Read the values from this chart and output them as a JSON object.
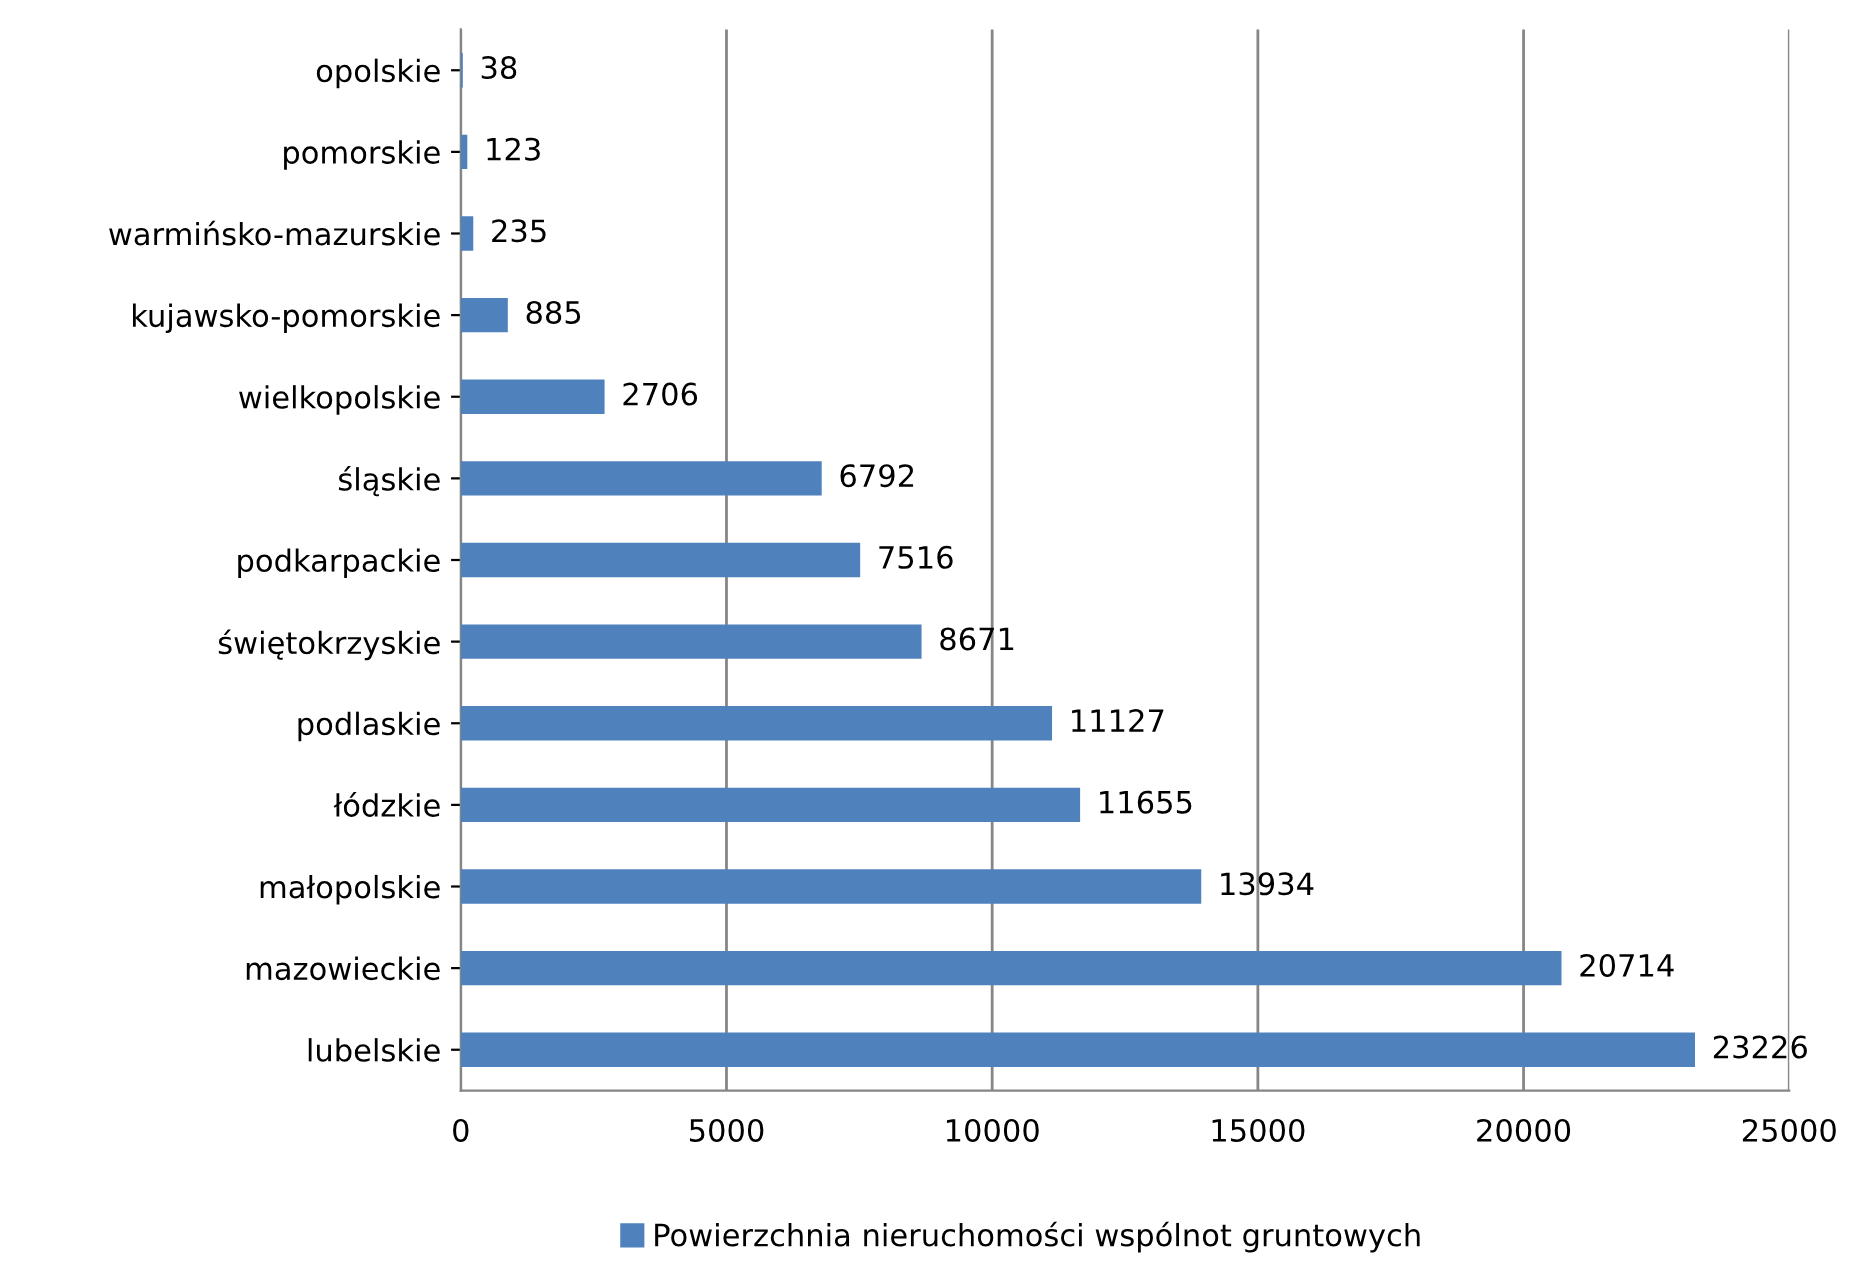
{
  "chart_data": {
    "type": "bar",
    "orientation": "horizontal",
    "categories": [
      "opolskie",
      "pomorskie",
      "warmińsko-mazurskie",
      "kujawsko-pomorskie",
      "wielkopolskie",
      "śląskie",
      "podkarpackie",
      "świętokrzyskie",
      "podlaskie",
      "łódzkie",
      "małopolskie",
      "mazowieckie",
      "lubelskie"
    ],
    "series": [
      {
        "name": "Powierzchnia nieruchomości wspólnot gruntowych",
        "color": "#4f81bd",
        "values": [
          38,
          123,
          235,
          885,
          2706,
          6792,
          7516,
          8671,
          11127,
          11655,
          13934,
          20714,
          23226
        ]
      }
    ],
    "xlim": [
      0,
      25000
    ],
    "xticks": [
      0,
      5000,
      10000,
      15000,
      20000,
      25000
    ],
    "grid": "x",
    "legend": "bottom",
    "data_labels": true
  }
}
